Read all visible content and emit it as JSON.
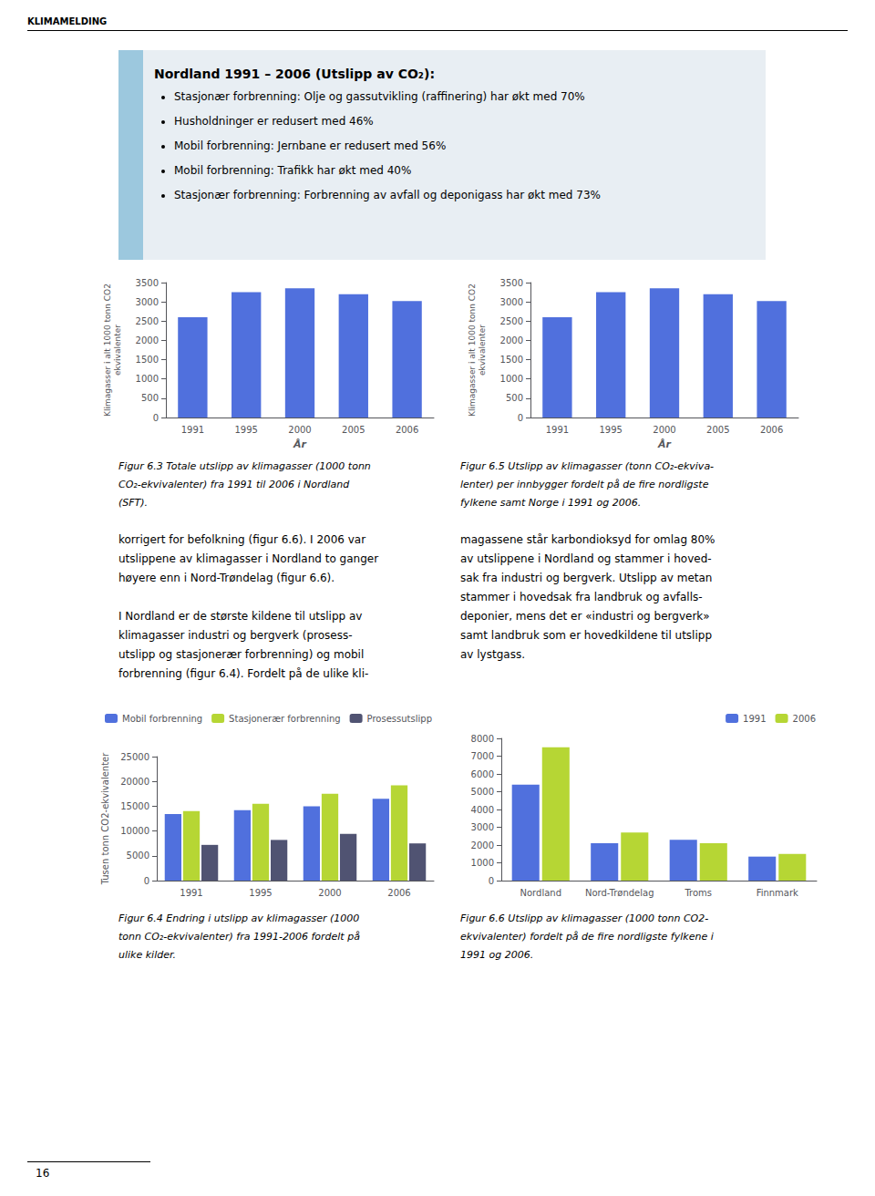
{
  "page_header": "KLIMAMELDING",
  "info_box": {
    "title": "Nordland 1991 – 2006 (Utslipp av CO₂):",
    "bullets": [
      "Stasjonær forbrenning: Olje og gassutvikling (raffinering) har økt med 70%",
      "Husholdninger er redusert med 46%",
      "Mobil forbrenning: Jernbane er redusert med 56%",
      "Mobil forbrenning: Trafikk har økt med 40%",
      "Stasjonær forbrenning: Forbrenning av avfall og deponigass har økt med 73%"
    ]
  },
  "body_left": [
    [
      "korrigert for befolkning (figur 6.6). I 2006 var",
      "utslippene av klimagasser i Nordland to ganger",
      "høyere enn i Nord-Trøndelag (figur 6.6)."
    ],
    [
      "I Nordland er de største kildene til utslipp av",
      "klimagasser industri og bergverk (prosess-",
      "utslipp og stasjonerær forbrenning) og mobil",
      "forbrenning (figur 6.4). Fordelt på de ulike kli-"
    ]
  ],
  "body_right": [
    [
      "magassene står karbondioksyd for omlag 80%",
      "av utslippene i Nordland og stammer i hoved-",
      "sak fra industri og bergverk. Utslipp av metan",
      "stammer i hovedsak fra landbruk og avfalls-",
      "deponier, mens det er «industri og bergverk»",
      "samt landbruk som er hovedkildene til utslipp",
      "av lystgass."
    ]
  ],
  "page_number": "16",
  "chart_data": [
    {
      "type": "bar",
      "caption": [
        "Figur 6.3 Totale utslipp av klimagasser (1000 tonn",
        "CO₂-ekvivalenter) fra 1991 til 2006 i Nordland",
        "(SFT)."
      ],
      "xlabel": "År",
      "ylabel": "Klimagasser i alt 1000 tonn CO2\nekvivalenter",
      "categories": [
        "1991",
        "1995",
        "2000",
        "2005",
        "2006"
      ],
      "values": [
        2600,
        3250,
        3350,
        3200,
        3020
      ],
      "ylim": [
        0,
        3500
      ],
      "yticks": [
        0,
        500,
        1000,
        1500,
        2000,
        2500,
        3000,
        3500
      ],
      "grid": false
    },
    {
      "type": "bar",
      "caption": [
        "Figur 6.5 Utslipp av klimagasser (tonn CO₂-ekviva-",
        "lenter) per innbygger fordelt på de fire nordligste",
        "fylkene samt Norge i 1991 og 2006."
      ],
      "xlabel": "År",
      "ylabel": "Klimagasser i alt 1000 tonn CO2\nekvivalenter",
      "categories": [
        "1991",
        "1995",
        "2000",
        "2005",
        "2006"
      ],
      "values": [
        2600,
        3250,
        3350,
        3200,
        3020
      ],
      "ylim": [
        0,
        3500
      ],
      "yticks": [
        0,
        500,
        1000,
        1500,
        2000,
        2500,
        3000,
        3500
      ],
      "grid": false
    },
    {
      "type": "bar",
      "caption": [
        "Figur 6.4 Endring i utslipp av klimagasser (1000",
        "tonn CO₂-ekvivalenter) fra 1991-2006 fordelt på",
        "ulike kilder."
      ],
      "ylabel": "Tusen tonn CO2-ekvivalenter",
      "categories": [
        "1991",
        "1995",
        "2000",
        "2006"
      ],
      "series": [
        {
          "name": "Mobil forbrenning",
          "values": [
            13400,
            14200,
            15000,
            16500
          ]
        },
        {
          "name": "Stasjonerær forbrenning",
          "values": [
            14000,
            15500,
            17500,
            19200
          ]
        },
        {
          "name": "Prosessutslipp",
          "values": [
            7200,
            8200,
            9400,
            7500
          ]
        }
      ],
      "ylim": [
        0,
        25000
      ],
      "yticks": [
        0,
        5000,
        10000,
        15000,
        20000,
        25000
      ],
      "legend": "upper left",
      "grid": false
    },
    {
      "type": "bar",
      "caption": [
        "Figur 6.6 Utslipp av klimagasser (1000 tonn CO2-",
        "ekvivalenter) fordelt på de fire nordligste fylkene i",
        "1991 og 2006."
      ],
      "categories": [
        "Nordland",
        "Nord-Trøndelag",
        "Troms",
        "Finnmark"
      ],
      "series": [
        {
          "name": "1991",
          "values": [
            5400,
            2100,
            2300,
            1350
          ]
        },
        {
          "name": "2006",
          "values": [
            7500,
            2700,
            2100,
            1500
          ]
        }
      ],
      "ylim": [
        0,
        8000
      ],
      "yticks": [
        0,
        1000,
        2000,
        3000,
        4000,
        5000,
        6000,
        7000,
        8000
      ],
      "legend": "upper right",
      "grid": false
    }
  ]
}
